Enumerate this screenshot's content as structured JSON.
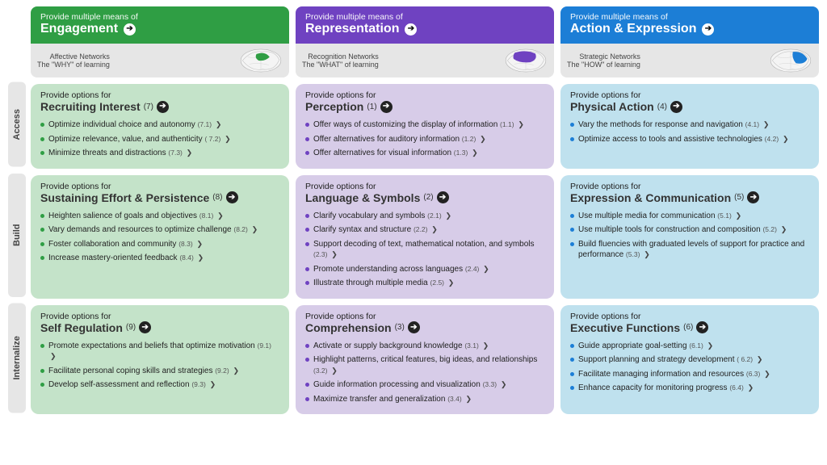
{
  "colors": {
    "engagement": {
      "header": "#2f9e44",
      "cell": "#c4e3c9",
      "bullet": "#2f9e44"
    },
    "representation": {
      "header": "#6f42c1",
      "cell": "#d7cce8",
      "bullet": "#6f42c1"
    },
    "action": {
      "header": "#1c7ed6",
      "cell": "#bfe1ee",
      "bullet": "#1c7ed6"
    }
  },
  "header_pre": "Provide multiple means of",
  "columns": [
    {
      "key": "engagement",
      "title": "Engagement",
      "network_line1": "Affective Networks",
      "network_line2": "The \"WHY\" of learning"
    },
    {
      "key": "representation",
      "title": "Representation",
      "network_line1": "Recognition Networks",
      "network_line2": "The \"WHAT\" of learning"
    },
    {
      "key": "action",
      "title": "Action & Expression",
      "network_line1": "Strategic Networks",
      "network_line2": "The \"HOW\" of learning"
    }
  ],
  "row_labels": [
    "Access",
    "Build",
    "Internalize"
  ],
  "cell_pre": "Provide options for",
  "cells": [
    [
      {
        "title": "Recruiting Interest",
        "num": "(7)",
        "items": [
          {
            "t": "Optimize individual choice and autonomy",
            "c": "(7.1)"
          },
          {
            "t": "Optimize relevance, value, and authenticity",
            "c": "( 7.2)"
          },
          {
            "t": "Minimize threats and distractions",
            "c": "(7.3)"
          }
        ]
      },
      {
        "title": "Perception",
        "num": "(1)",
        "items": [
          {
            "t": "Offer ways of customizing the display of information",
            "c": "(1.1)"
          },
          {
            "t": "Offer alternatives for auditory information",
            "c": "(1.2)"
          },
          {
            "t": "Offer alternatives for visual information",
            "c": "(1.3)"
          }
        ]
      },
      {
        "title": "Physical Action",
        "num": "(4)",
        "items": [
          {
            "t": "Vary the methods for response and navigation",
            "c": "(4.1)"
          },
          {
            "t": "Optimize access to tools and assistive technologies",
            "c": "(4.2)"
          }
        ]
      }
    ],
    [
      {
        "title": "Sustaining Effort & Persistence",
        "num": "(8)",
        "items": [
          {
            "t": "Heighten salience of goals and objectives",
            "c": "(8.1)"
          },
          {
            "t": "Vary demands and resources to optimize challenge",
            "c": "(8.2)"
          },
          {
            "t": "Foster collaboration and community",
            "c": "(8.3)"
          },
          {
            "t": "Increase mastery-oriented feedback",
            "c": "(8.4)"
          }
        ]
      },
      {
        "title": "Language & Symbols",
        "num": "(2)",
        "items": [
          {
            "t": "Clarify vocabulary and symbols",
            "c": "(2.1)"
          },
          {
            "t": "Clarify syntax and structure",
            "c": "(2.2)"
          },
          {
            "t": "Support decoding of text, mathematical notation, and symbols",
            "c": "(2.3)"
          },
          {
            "t": "Promote understanding across languages",
            "c": "(2.4)"
          },
          {
            "t": "Illustrate through multiple media",
            "c": "(2.5)"
          }
        ]
      },
      {
        "title": "Expression & Communication",
        "num": "(5)",
        "items": [
          {
            "t": "Use multiple media for communication",
            "c": "(5.1)"
          },
          {
            "t": "Use multiple tools for construction and composition",
            "c": "(5.2)"
          },
          {
            "t": "Build fluencies with graduated levels of support for practice and performance",
            "c": "(5.3)"
          }
        ]
      }
    ],
    [
      {
        "title": "Self Regulation",
        "num": "(9)",
        "items": [
          {
            "t": "Promote expectations and beliefs that optimize motivation",
            "c": "(9.1)"
          },
          {
            "t": "Facilitate personal coping skills and strategies",
            "c": "(9.2)"
          },
          {
            "t": "Develop self-assessment and reflection",
            "c": "(9.3)"
          }
        ]
      },
      {
        "title": "Comprehension",
        "num": "(3)",
        "items": [
          {
            "t": "Activate or supply background knowledge",
            "c": "(3.1)"
          },
          {
            "t": "Highlight patterns, critical features, big ideas, and relationships",
            "c": "(3.2)"
          },
          {
            "t": "Guide information processing and visualization",
            "c": "(3.3)"
          },
          {
            "t": "Maximize transfer and generalization",
            "c": "(3.4)"
          }
        ]
      },
      {
        "title": "Executive Functions",
        "num": "(6)",
        "items": [
          {
            "t": "Guide appropriate goal-setting",
            "c": "(6.1)"
          },
          {
            "t": "Support planning and strategy development",
            "c": "( 6.2)"
          },
          {
            "t": "Facilitate managing information and resources",
            "c": "(6.3)"
          },
          {
            "t": "Enhance capacity for monitoring progress",
            "c": "(6.4)"
          }
        ]
      }
    ]
  ]
}
